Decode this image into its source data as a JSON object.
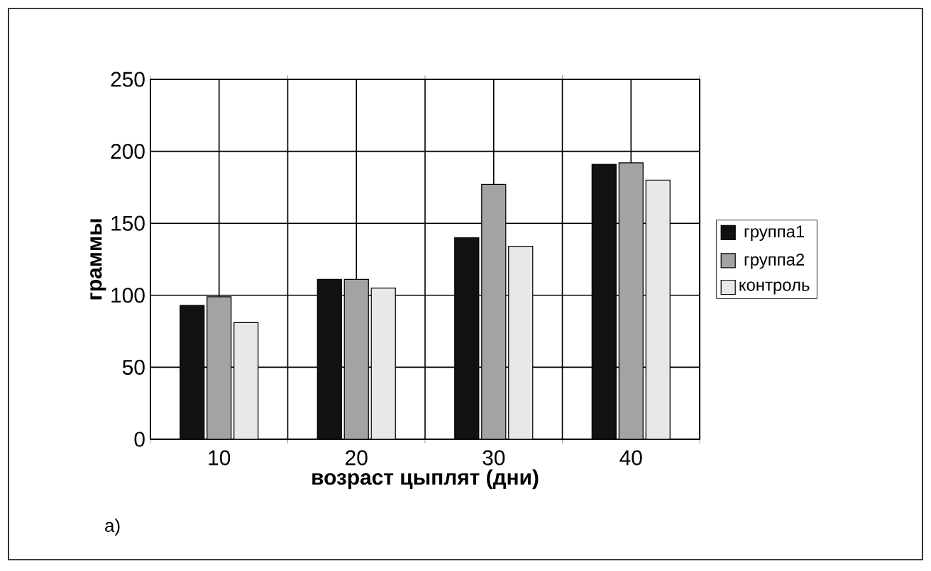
{
  "chart_data": {
    "type": "bar",
    "xlabel": "возраст цыплят (дни)",
    "ylabel": "граммы",
    "categories": [
      "10",
      "20",
      "30",
      "40"
    ],
    "series": [
      {
        "name": "группа1",
        "color": "#111111",
        "values": [
          93,
          111,
          140,
          191
        ]
      },
      {
        "name": "группа2",
        "color": "#a3a3a3",
        "values": [
          99,
          111,
          177,
          192
        ]
      },
      {
        "name": "контроль",
        "color": "#e8e8e8",
        "values": [
          81,
          105,
          134,
          180
        ]
      }
    ],
    "ylim": [
      0,
      250
    ],
    "yticks": [
      0,
      50,
      100,
      150,
      200,
      250
    ],
    "grid": true,
    "legend": "right",
    "annotations": [
      "a)"
    ]
  }
}
